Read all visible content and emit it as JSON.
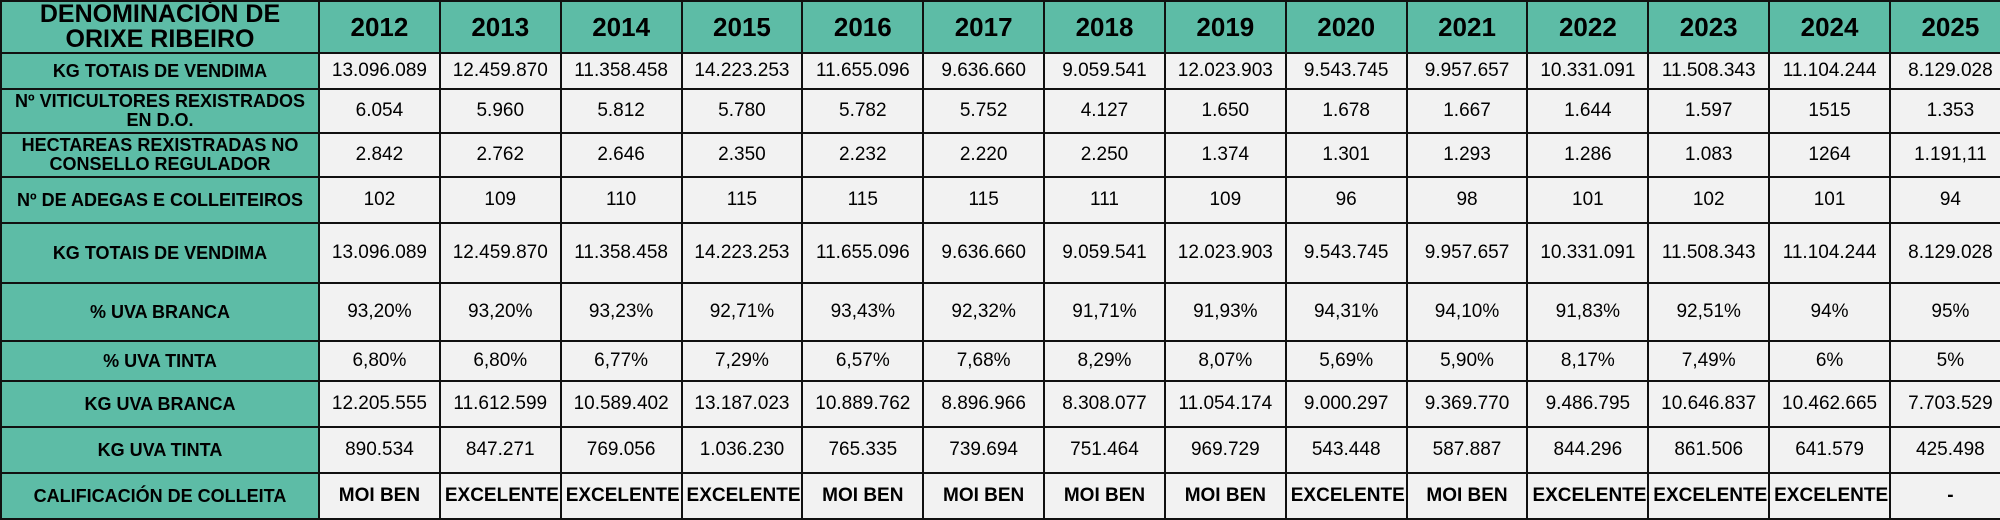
{
  "table": {
    "corner_label": "DENOMINACIÓN DE ORIXE RIBEIRO",
    "years": [
      "2012",
      "2013",
      "2014",
      "2015",
      "2016",
      "2017",
      "2018",
      "2019",
      "2020",
      "2021",
      "2022",
      "2023",
      "2024",
      "2025"
    ],
    "rows": [
      {
        "label": "KG TOTAIS DE VENDIMA",
        "values": [
          "13.096.089",
          "12.459.870",
          "11.358.458",
          "14.223.253",
          "11.655.096",
          "9.636.660",
          "9.059.541",
          "12.023.903",
          "9.543.745",
          "9.957.657",
          "10.331.091",
          "11.508.343",
          "11.104.244",
          "8.129.028"
        ]
      },
      {
        "label": "Nº VITICULTORES REXISTRADOS EN D.O.",
        "values": [
          "6.054",
          "5.960",
          "5.812",
          "5.780",
          "5.782",
          "5.752",
          "4.127",
          "1.650",
          "1.678",
          "1.667",
          "1.644",
          "1.597",
          "1515",
          "1.353"
        ]
      },
      {
        "label": "HECTAREAS REXISTRADAS NO CONSELLO REGULADOR",
        "values": [
          "2.842",
          "2.762",
          "2.646",
          "2.350",
          "2.232",
          "2.220",
          "2.250",
          "1.374",
          "1.301",
          "1.293",
          "1.286",
          "1.083",
          "1264",
          "1.191,11"
        ]
      },
      {
        "label": "Nº DE ADEGAS E COLLEITEIROS",
        "values": [
          "102",
          "109",
          "110",
          "115",
          "115",
          "115",
          "111",
          "109",
          "96",
          "98",
          "101",
          "102",
          "101",
          "94"
        ]
      },
      {
        "label": "KG TOTAIS DE VENDIMA",
        "values": [
          "13.096.089",
          "12.459.870",
          "11.358.458",
          "14.223.253",
          "11.655.096",
          "9.636.660",
          "9.059.541",
          "12.023.903",
          "9.543.745",
          "9.957.657",
          "10.331.091",
          "11.508.343",
          "11.104.244",
          "8.129.028"
        ]
      },
      {
        "label": "% UVA BRANCA",
        "values": [
          "93,20%",
          "93,20%",
          "93,23%",
          "92,71%",
          "93,43%",
          "92,32%",
          "91,71%",
          "91,93%",
          "94,31%",
          "94,10%",
          "91,83%",
          "92,51%",
          "94%",
          "95%"
        ]
      },
      {
        "label": "% UVA TINTA",
        "values": [
          "6,80%",
          "6,80%",
          "6,77%",
          "7,29%",
          "6,57%",
          "7,68%",
          "8,29%",
          "8,07%",
          "5,69%",
          "5,90%",
          "8,17%",
          "7,49%",
          "6%",
          "5%"
        ]
      },
      {
        "label": "KG UVA BRANCA",
        "values": [
          "12.205.555",
          "11.612.599",
          "10.589.402",
          "13.187.023",
          "10.889.762",
          "8.896.966",
          "8.308.077",
          "11.054.174",
          "9.000.297",
          "9.369.770",
          "9.486.795",
          "10.646.837",
          "10.462.665",
          "7.703.529"
        ]
      },
      {
        "label": "KG UVA TINTA",
        "values": [
          "890.534",
          "847.271",
          "769.056",
          "1.036.230",
          "765.335",
          "739.694",
          "751.464",
          "969.729",
          "543.448",
          "587.887",
          "844.296",
          "861.506",
          "641.579",
          "425.498"
        ]
      },
      {
        "label": "CALIFICACIÓN DE COLLEITA",
        "values": [
          "MOI BEN",
          "EXCELENTE",
          "EXCELENTE",
          "EXCELENTE",
          "MOI BEN",
          "MOI BEN",
          "MOI BEN",
          "MOI BEN",
          "EXCELENTE",
          "MOI BEN",
          "EXCELENTE",
          "EXCELENTE",
          "EXCELENTE",
          "-"
        ]
      }
    ]
  }
}
